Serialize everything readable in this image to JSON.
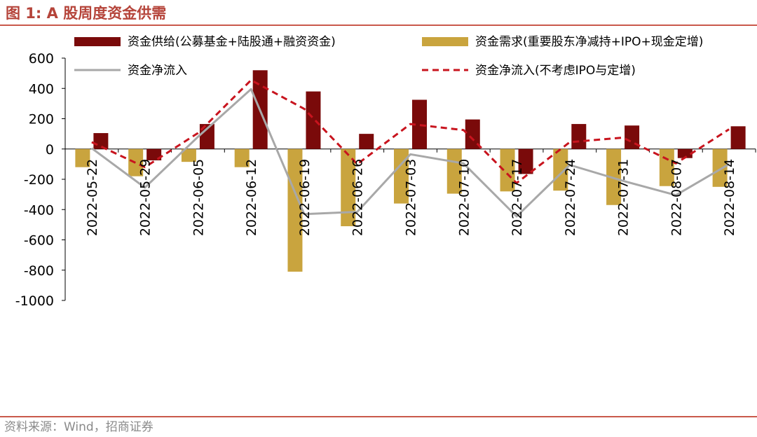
{
  "figure": {
    "title": "图 1:  A 股周度资金供需",
    "source": "资料来源：Wind，招商证券"
  },
  "colors": {
    "supply": "#7a0a0a",
    "demand": "#c9a43e",
    "net_flow": "#a8a8a8",
    "net_flow_ex": "#c8141e",
    "accent": "#c9594b"
  },
  "chart_data": {
    "type": "bar",
    "title": "A 股周度资金供需",
    "xlabel": "",
    "ylabel": "",
    "ylim": [
      -1000,
      600
    ],
    "yticks": [
      600,
      400,
      200,
      0,
      -200,
      -400,
      -600,
      -800,
      -1000
    ],
    "categories": [
      "2022-05-22",
      "2022-05-29",
      "2022-06-05",
      "2022-06-12",
      "2022-06-19",
      "2022-06-26",
      "2022-07-03",
      "2022-07-10",
      "2022-07-17",
      "2022-07-24",
      "2022-07-31",
      "2022-08-07",
      "2022-08-14"
    ],
    "series": [
      {
        "name": "资金供给(公募基金+陆股通+融资资金)",
        "kind": "bar",
        "values": [
          105,
          -75,
          165,
          520,
          380,
          100,
          325,
          195,
          -165,
          165,
          155,
          -60,
          150
        ]
      },
      {
        "name": "资金需求(重要股东净减持+IPO+现金定增)",
        "kind": "bar",
        "values": [
          -120,
          -180,
          -85,
          -120,
          -810,
          -510,
          -360,
          -295,
          -280,
          -275,
          -370,
          -245,
          -250
        ]
      },
      {
        "name": "资金净流入",
        "kind": "line",
        "values": [
          5,
          -255,
          80,
          395,
          -430,
          -415,
          -35,
          -95,
          -445,
          -105,
          -210,
          -305,
          -100
        ]
      },
      {
        "name": "资金净流入(不考虑IPO与定增)",
        "kind": "line-dashed",
        "values": [
          45,
          -120,
          105,
          455,
          265,
          -100,
          165,
          125,
          -225,
          45,
          75,
          -95,
          130
        ]
      }
    ],
    "legend": "top, two columns"
  }
}
